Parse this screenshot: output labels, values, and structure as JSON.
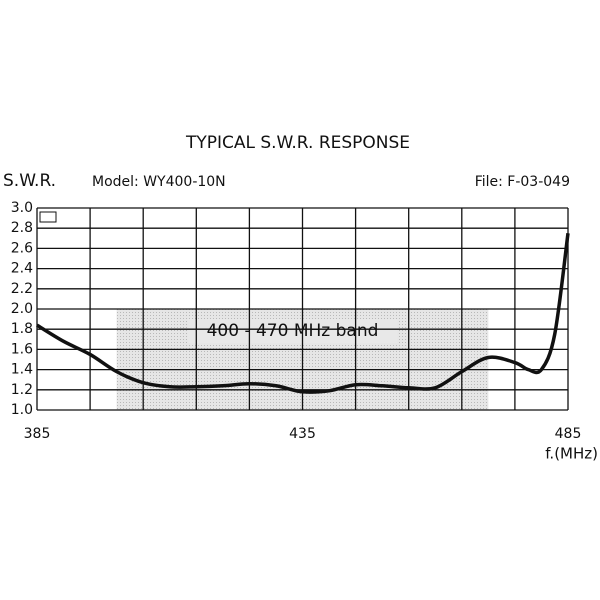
{
  "chart_data": {
    "type": "line",
    "title": "TYPICAL S.W.R. RESPONSE",
    "y_label": "S.W.R.",
    "model": "Model:  WY400-10N",
    "file": "File:  F-03-049",
    "x_label": "f.(MHz)",
    "x": [
      385,
      390,
      395,
      400,
      405,
      410,
      415,
      420,
      425,
      430,
      435,
      440,
      445,
      450,
      455,
      460,
      465,
      470,
      475,
      477.5,
      480,
      482.5,
      485
    ],
    "series": [
      {
        "name": "S.W.R.",
        "color": "#111111",
        "values": [
          1.84,
          1.68,
          1.55,
          1.38,
          1.27,
          1.23,
          1.23,
          1.24,
          1.26,
          1.24,
          1.18,
          1.19,
          1.25,
          1.24,
          1.22,
          1.22,
          1.38,
          1.52,
          1.47,
          1.4,
          1.4,
          1.75,
          2.75
        ]
      }
    ],
    "xlim": [
      385,
      485
    ],
    "xticks": [
      385,
      435,
      485
    ],
    "x_minor_ticks": [
      395,
      405,
      415,
      425,
      445,
      455,
      465,
      475
    ],
    "ylim": [
      1.0,
      3.0
    ],
    "yticks": [
      {
        "value": 1.0,
        "label": "1.0"
      },
      1.2,
      1.4,
      1.6,
      1.8,
      {
        "value": 2.0,
        "label": "2.0"
      },
      2.2,
      2.4,
      2.6,
      2.8,
      {
        "value": 3.0,
        "label": "3.0"
      }
    ],
    "grid": true,
    "band": {
      "from": 400,
      "to": 470,
      "ylim": [
        1.0,
        2.0
      ],
      "label": "400 - 470 MHz band",
      "color": "#dcdcdc"
    }
  }
}
